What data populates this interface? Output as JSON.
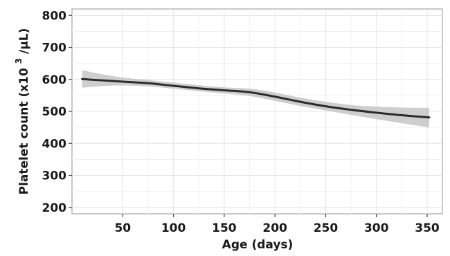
{
  "chart_data": {
    "type": "line",
    "title": "",
    "xlabel": "Age (days)",
    "ylabel_main": "Platelet count (x10",
    "ylabel_sup": "3",
    "ylabel_tail": "/µL)",
    "xlim": [
      0,
      365
    ],
    "ylim": [
      180,
      820
    ],
    "x_ticks": [
      50,
      100,
      150,
      200,
      250,
      300,
      350
    ],
    "x_tick_labels": [
      "50",
      "100",
      "150",
      "200",
      "250",
      "300",
      "350"
    ],
    "y_ticks": [
      200,
      300,
      400,
      500,
      600,
      700,
      800
    ],
    "y_tick_labels": [
      "200",
      "300",
      "400",
      "500",
      "600",
      "700",
      "800"
    ],
    "grid": true,
    "legend": "none",
    "series": [
      {
        "x": [
          10,
          30,
          50,
          75,
          100,
          125,
          150,
          175,
          200,
          225,
          250,
          275,
          300,
          325,
          352
        ],
        "values": [
          601,
          597,
          593,
          588,
          580,
          572,
          566,
          560,
          546,
          530,
          516,
          505,
          496,
          488,
          481
        ],
        "lower": [
          574,
          579,
          581,
          578,
          571,
          563,
          556,
          548,
          533,
          517,
          503,
          489,
          476,
          463,
          450
        ],
        "upper": [
          629,
          616,
          606,
          598,
          590,
          582,
          575,
          571,
          559,
          543,
          530,
          520,
          515,
          512,
          511
        ]
      }
    ],
    "colors": {
      "line": "#2b2b2b",
      "band": "#c9c9c9"
    }
  }
}
